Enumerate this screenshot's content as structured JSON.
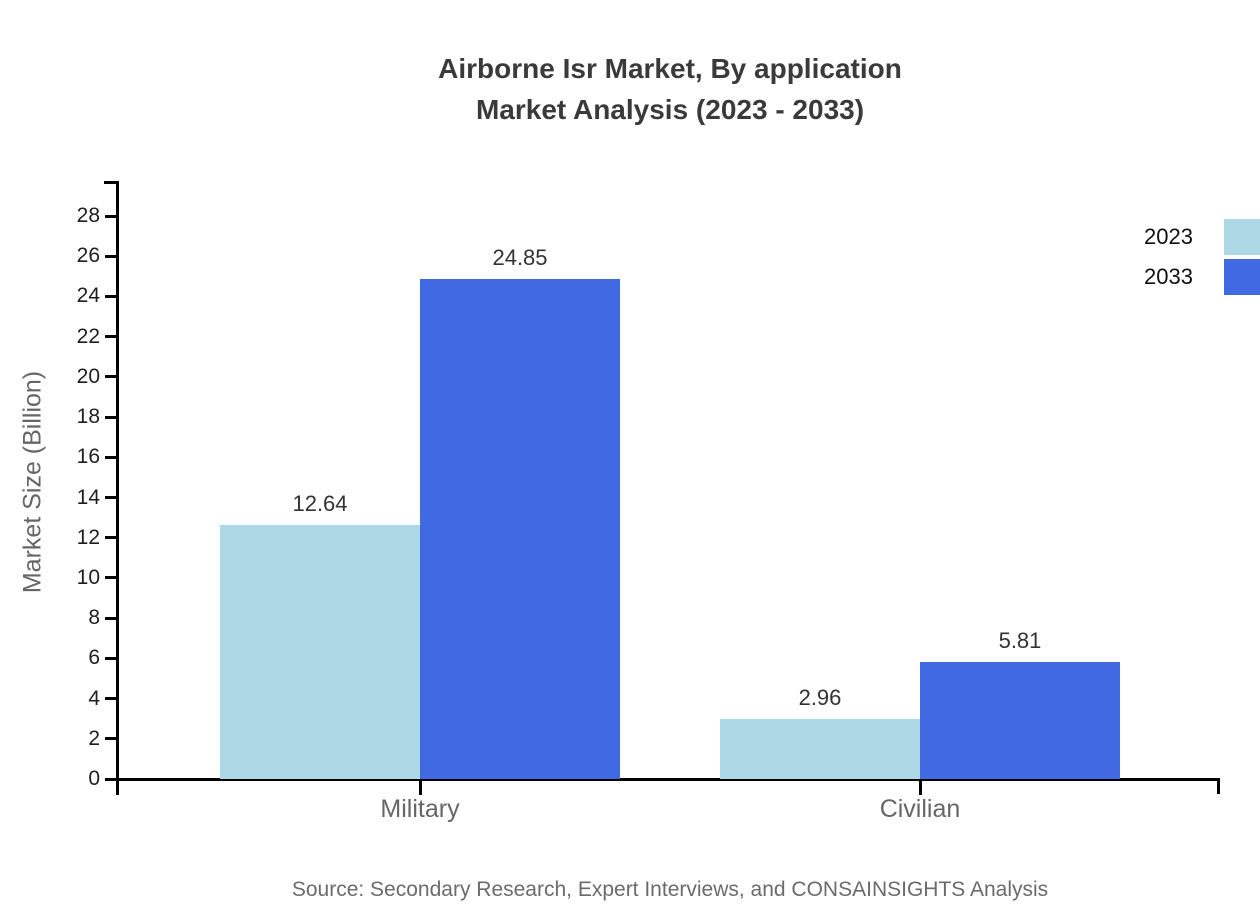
{
  "title": {
    "line1": "Airborne Isr Market, By application",
    "line2": "Market Analysis (2023 - 2033)"
  },
  "source": "Source: Secondary Research, Expert Interviews, and CONSAINSIGHTS Analysis",
  "chart_data": {
    "type": "bar",
    "title": "Airborne Isr Market, By application Market Analysis (2023 - 2033)",
    "categories": [
      "Military",
      "Civilian"
    ],
    "series": [
      {
        "name": "2023",
        "color": "#ADD8E6",
        "values": [
          12.64,
          2.96
        ]
      },
      {
        "name": "2033",
        "color": "#4169E1",
        "values": [
          24.85,
          5.81
        ]
      }
    ],
    "value_labels": [
      [
        "12.64",
        "2.96"
      ],
      [
        "24.85",
        "5.81"
      ]
    ],
    "xlabel": "",
    "ylabel": "Market Size (Billion)",
    "ylim": [
      0,
      29.8
    ],
    "y_ticks": [
      0,
      2,
      4,
      6,
      8,
      10,
      12,
      14,
      16,
      18,
      20,
      22,
      24,
      26,
      28
    ],
    "grid": false,
    "legend_position": "upper-right-outside",
    "colors": {
      "axis": "#000000",
      "title_text": "#3a3a3a",
      "tick_text": "#1f1f1f",
      "category_text": "#666666",
      "value_text": "#333333",
      "source_text": "#6b6b6b"
    }
  }
}
